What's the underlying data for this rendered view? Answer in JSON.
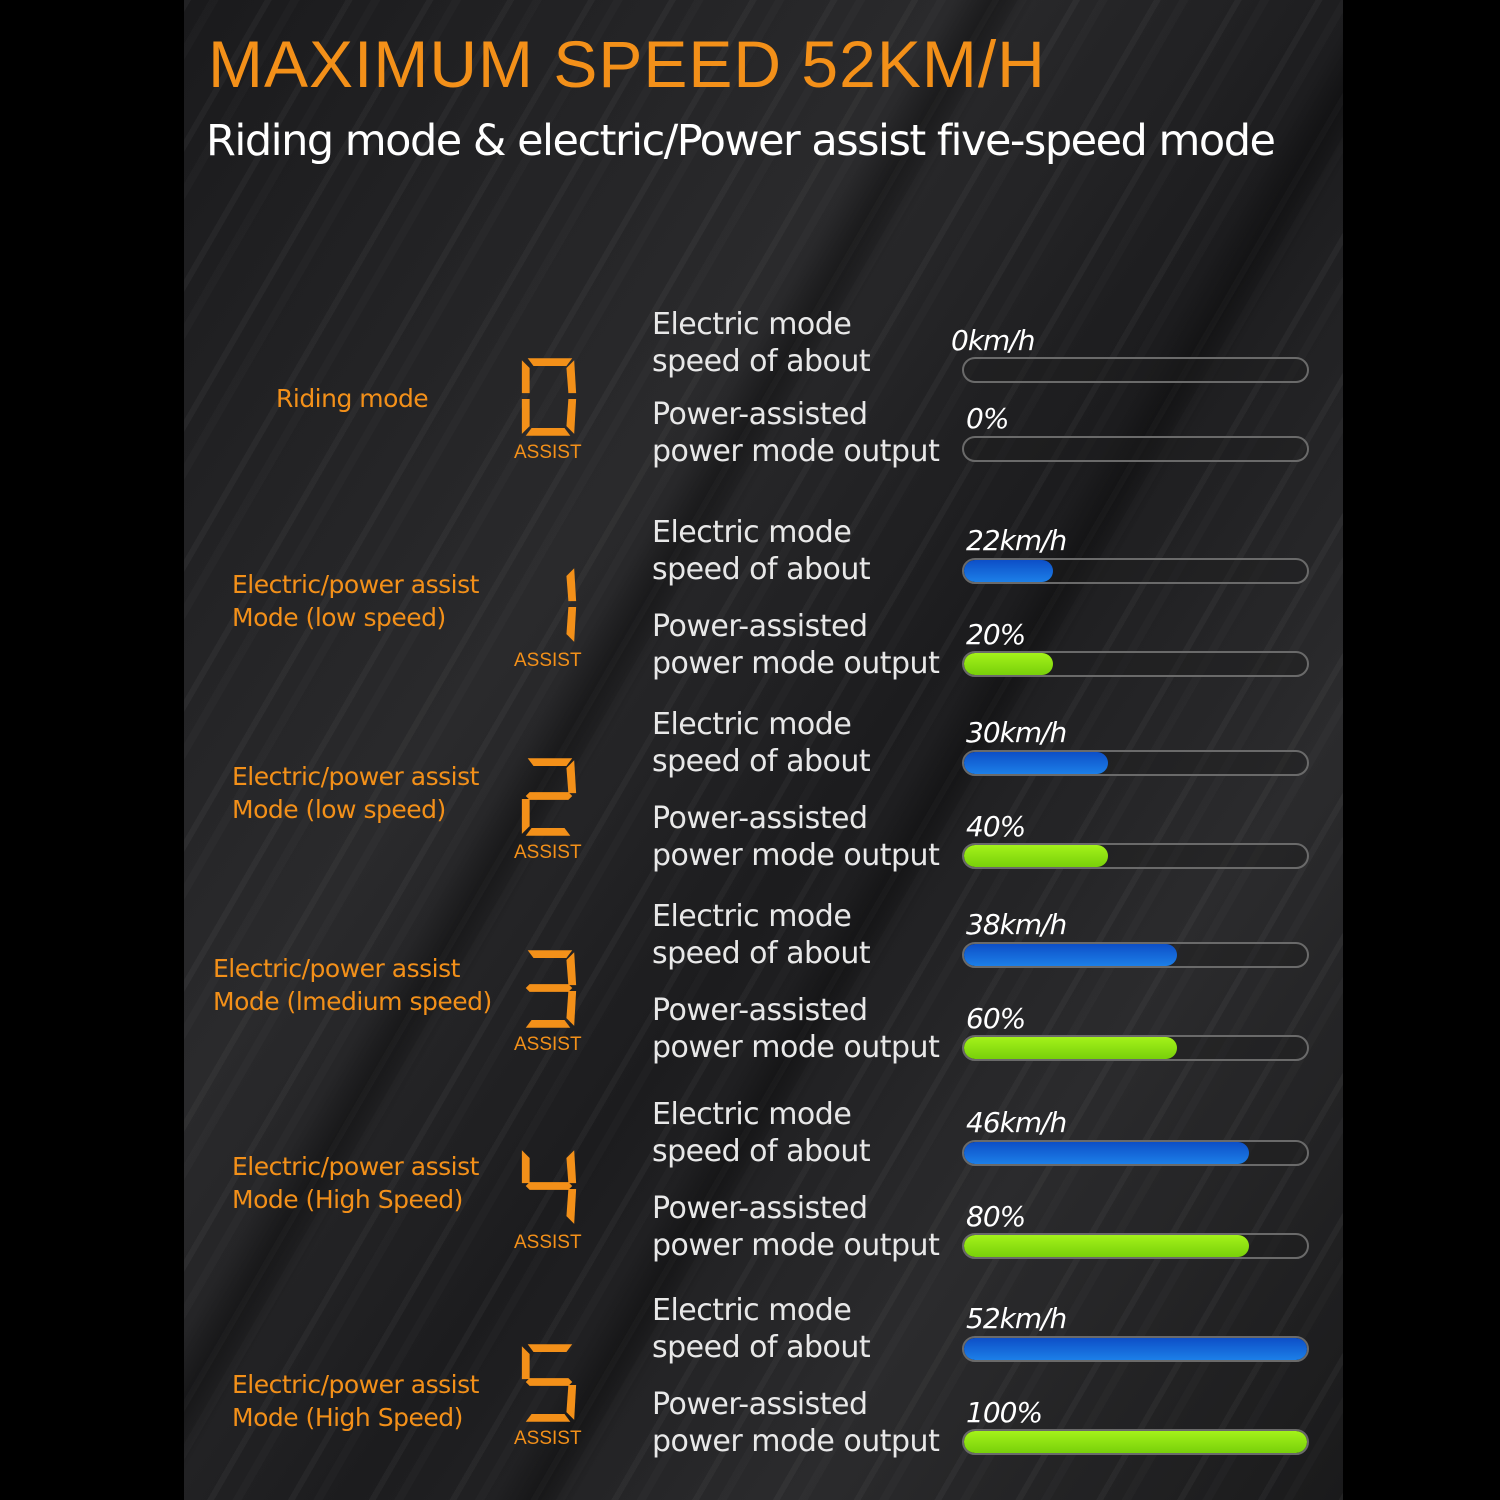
{
  "header": {
    "title": "MAXIMUM SPEED 52KM/H",
    "subtitle": "Riding mode & electric/Power assist five-speed mode"
  },
  "colors": {
    "accent": "#f39019",
    "speed_bar": "#1668d8",
    "power_bar": "#8fe010"
  },
  "rows": [
    {
      "mode": "Riding mode",
      "digit": "0",
      "assist": "ASSIST",
      "speed_label": "Electric mode\nspeed of about",
      "speed": "0km/h",
      "speed_fill": 0,
      "power_label": "Power-assisted\npower mode output",
      "power": "0%",
      "power_fill": 0
    },
    {
      "mode": "Electric/power assist\nMode (low speed)",
      "digit": "1",
      "assist": "ASSIST",
      "speed_label": "Electric mode\nspeed of about",
      "speed": "22km/h",
      "speed_fill": 0.26,
      "power_label": "Power-assisted\npower mode output",
      "power": "20%",
      "power_fill": 0.26
    },
    {
      "mode": "Electric/power assist\nMode (low speed)",
      "digit": "2",
      "assist": "ASSIST",
      "speed_label": "Electric mode\nspeed of about",
      "speed": "30km/h",
      "speed_fill": 0.42,
      "power_label": "Power-assisted\npower mode output",
      "power": "40%",
      "power_fill": 0.42
    },
    {
      "mode": "Electric/power assist\nMode (lmedium speed)",
      "digit": "3",
      "assist": "ASSIST",
      "speed_label": "Electric mode\nspeed of about",
      "speed": "38km/h",
      "speed_fill": 0.62,
      "power_label": "Power-assisted\npower mode output",
      "power": "60%",
      "power_fill": 0.62
    },
    {
      "mode": "Electric/power assist\nMode (High Speed)",
      "digit": "4",
      "assist": "ASSIST",
      "speed_label": "Electric mode\nspeed of about",
      "speed": "46km/h",
      "speed_fill": 0.83,
      "power_label": "Power-assisted\npower mode output",
      "power": "80%",
      "power_fill": 0.83
    },
    {
      "mode": "Electric/power assist\nMode (High Speed)",
      "digit": "5",
      "assist": "ASSIST",
      "speed_label": "Electric mode\nspeed of about",
      "speed": "52km/h",
      "speed_fill": 1,
      "power_label": "Power-assisted\npower mode output",
      "power": "100%",
      "power_fill": 1
    }
  ]
}
